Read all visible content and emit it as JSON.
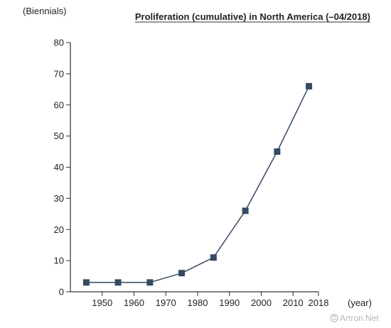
{
  "chart_data": {
    "type": "line",
    "title": "Proliferation (cumulative) in North America (–04/2018)",
    "ylabel": "(Biennials)",
    "xlabel": "(year)",
    "x_ticks": [
      1950,
      1960,
      1970,
      1980,
      1990,
      2000,
      2010,
      2018
    ],
    "y_ticks": [
      0,
      10,
      20,
      30,
      40,
      50,
      60,
      70,
      80
    ],
    "xlim": [
      1940,
      2018
    ],
    "ylim": [
      0,
      80
    ],
    "series": [
      {
        "x": [
          1945,
          1955,
          1965,
          1975,
          1985,
          1995,
          2005,
          2015
        ],
        "values": [
          3,
          3,
          3,
          6,
          11,
          26,
          45,
          66
        ]
      }
    ],
    "grid": false,
    "colors": {
      "series": "#344a63",
      "axis": "#333333"
    }
  },
  "watermark": "Artron.Net"
}
